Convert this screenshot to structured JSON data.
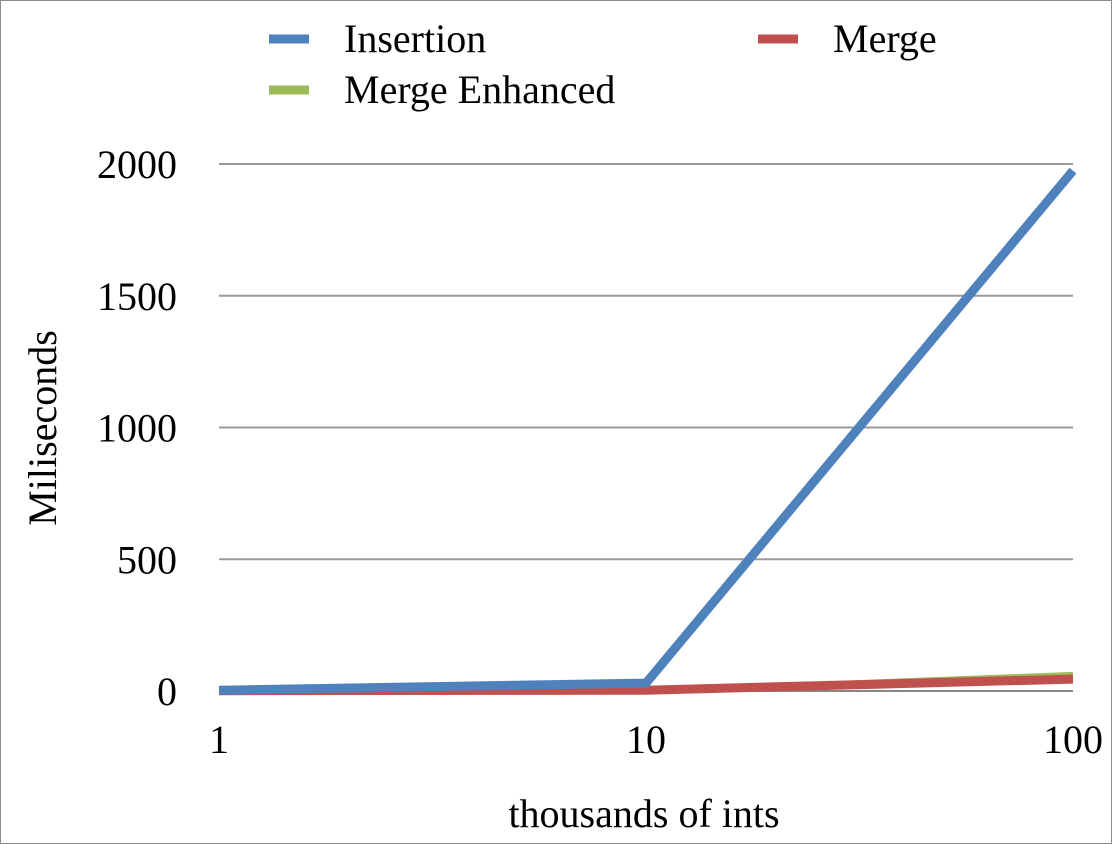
{
  "chart_data": {
    "type": "line",
    "x_scale": "log",
    "categories": [
      "1",
      "10",
      "100"
    ],
    "x": [
      1,
      10,
      100
    ],
    "series": [
      {
        "name": "Insertion",
        "color": "#4f81bd",
        "values": [
          3,
          30,
          1975
        ]
      },
      {
        "name": "Merge",
        "color": "#c0504d",
        "values": [
          1,
          3,
          45
        ]
      },
      {
        "name": "Merge Enhanced",
        "color": "#9bbb59",
        "values": [
          1,
          3,
          65
        ]
      }
    ],
    "xlabel": "thousands of ints",
    "ylabel": "Miliseconds",
    "ylim": [
      0,
      2000
    ],
    "yticks": [
      0,
      500,
      1000,
      1500,
      2000
    ],
    "ytick_labels": [
      "0",
      "500",
      "1000",
      "1500",
      "2000"
    ],
    "xticks": [
      1,
      10,
      100
    ],
    "xtick_labels": [
      "1",
      "10",
      "100"
    ],
    "grid": "horizontal",
    "legend_position": "top"
  }
}
